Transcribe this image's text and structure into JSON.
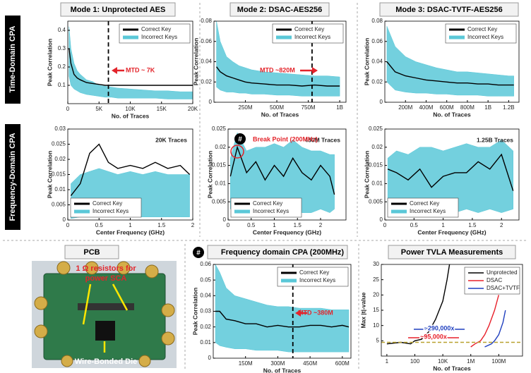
{
  "row_labels": [
    "Time-Domain CPA",
    "Frequency-Domain CPA"
  ],
  "pcb": {
    "title": "PCB",
    "resistor_note": [
      "1 Ω resistors for",
      "power SCA"
    ],
    "die_label": "Wire-Bonded Die"
  },
  "chart_data": [
    {
      "type": "line",
      "title": "Mode 1: Unprotected AES",
      "xlabel": "No. of Traces",
      "ylabel": "Peak Correlation",
      "x": [
        200,
        500,
        1000,
        1500,
        2000,
        3000,
        4000,
        5000,
        6000,
        7000,
        8000,
        10000,
        12000,
        14000,
        16000,
        18000,
        20000
      ],
      "xlim": [
        0,
        20000
      ],
      "xticks": [
        0,
        {
          "value": 5000,
          "label": "5K"
        },
        {
          "value": 10000,
          "label": "10K"
        },
        {
          "value": 15000,
          "label": "15K"
        },
        {
          "value": 20000,
          "label": "20K"
        }
      ],
      "ylim": [
        0,
        0.45
      ],
      "yticks": [
        0.1,
        0.2,
        0.3,
        0.4
      ],
      "legend": "upper right",
      "marker_x": 6500,
      "annotation": "MTD ~ 7K",
      "series": [
        {
          "name": "Correct Key",
          "color": "#000000",
          "values": [
            0.3,
            0.22,
            0.16,
            0.14,
            0.13,
            0.115,
            0.11,
            0.105,
            0.1,
            0.1,
            0.1,
            0.1,
            0.1,
            0.1,
            0.1,
            0.1,
            0.1
          ]
        },
        {
          "name": "Incorrect Keys",
          "color": "#5bc8d8",
          "values": [
            0.42,
            0.3,
            0.22,
            0.18,
            0.16,
            0.13,
            0.12,
            0.1,
            0.095,
            0.09,
            0.085,
            0.08,
            0.075,
            0.07,
            0.07,
            0.065,
            0.065
          ],
          "lower": [
            0.15,
            0.1,
            0.08,
            0.07,
            0.06,
            0.05,
            0.045,
            0.04,
            0.035,
            0.035,
            0.03,
            0.03,
            0.03,
            0.03,
            0.025,
            0.025,
            0.025
          ]
        }
      ]
    },
    {
      "type": "line",
      "title": "Mode 2: DSAC-AES256",
      "xlabel": "No. of Traces",
      "ylabel": "Peak Correlation",
      "x": [
        20000000,
        50000000,
        100000000,
        150000000,
        200000000,
        250000000,
        300000000,
        400000000,
        500000000,
        600000000,
        700000000,
        800000000,
        900000000,
        1000000000
      ],
      "xlim": [
        0,
        1050000000
      ],
      "xticks": [
        {
          "value": 250000000,
          "label": "250M"
        },
        {
          "value": 500000000,
          "label": "500M"
        },
        {
          "value": 750000000,
          "label": "750M"
        },
        {
          "value": 1000000000,
          "label": "1B"
        }
      ],
      "ylim": [
        0,
        0.08
      ],
      "yticks": [
        0,
        0.02,
        0.04,
        0.06,
        0.08
      ],
      "legend": "upper right",
      "marker_x": 780000000,
      "annotation": "MTD ~820M",
      "series": [
        {
          "name": "Correct Key",
          "color": "#000000",
          "values": [
            0.035,
            0.03,
            0.026,
            0.024,
            0.022,
            0.02,
            0.019,
            0.018,
            0.017,
            0.017,
            0.016,
            0.017,
            0.016,
            0.016
          ]
        },
        {
          "name": "Incorrect Keys",
          "color": "#5bc8d8",
          "values": [
            0.08,
            0.06,
            0.045,
            0.04,
            0.036,
            0.034,
            0.032,
            0.03,
            0.029,
            0.028,
            0.027,
            0.026,
            0.026,
            0.025
          ],
          "lower": [
            0.015,
            0.012,
            0.01,
            0.01,
            0.009,
            0.009,
            0.008,
            0.008,
            0.007,
            0.007,
            0.006,
            0.006,
            0.006,
            0.006
          ]
        }
      ]
    },
    {
      "type": "line",
      "title": "Mode 3: DSAC-TVTF-AES256",
      "xlabel": "No. of Traces",
      "ylabel": "Peak Correlation",
      "x": [
        20000000,
        100000000,
        200000000,
        300000000,
        400000000,
        500000000,
        600000000,
        700000000,
        800000000,
        900000000,
        1000000000,
        1100000000,
        1200000000,
        1250000000
      ],
      "xlim": [
        0,
        1300000000
      ],
      "xticks": [
        {
          "value": 200000000,
          "label": "200M"
        },
        {
          "value": 400000000,
          "label": "400M"
        },
        {
          "value": 600000000,
          "label": "600M"
        },
        {
          "value": 800000000,
          "label": "800M"
        },
        {
          "value": 1000000000,
          "label": "1B"
        },
        {
          "value": 1200000000,
          "label": "1.2B"
        }
      ],
      "ylim": [
        0,
        0.08
      ],
      "yticks": [
        0,
        0.02,
        0.04,
        0.06,
        0.08
      ],
      "legend": "upper right",
      "series": [
        {
          "name": "Correct Key",
          "color": "#000000",
          "values": [
            0.04,
            0.03,
            0.026,
            0.024,
            0.022,
            0.021,
            0.02,
            0.019,
            0.019,
            0.018,
            0.018,
            0.017,
            0.017,
            0.017
          ]
        },
        {
          "name": "Incorrect Keys",
          "color": "#5bc8d8",
          "values": [
            0.075,
            0.055,
            0.045,
            0.04,
            0.037,
            0.034,
            0.032,
            0.03,
            0.03,
            0.029,
            0.028,
            0.027,
            0.026,
            0.026
          ],
          "lower": [
            0.02,
            0.012,
            0.01,
            0.009,
            0.009,
            0.008,
            0.008,
            0.007,
            0.007,
            0.007,
            0.006,
            0.006,
            0.006,
            0.006
          ]
        }
      ]
    },
    {
      "type": "line",
      "title": "20K Traces",
      "xlabel": "Center Frequency (GHz)",
      "ylabel": "Peak Correlation",
      "x": [
        0.05,
        0.2,
        0.35,
        0.5,
        0.65,
        0.8,
        1.0,
        1.2,
        1.4,
        1.6,
        1.8,
        1.95
      ],
      "xlim": [
        0,
        2
      ],
      "xticks": [
        0,
        0.5,
        1,
        1.5,
        2
      ],
      "ylim": [
        0,
        0.03
      ],
      "yticks": [
        0,
        0.005,
        0.01,
        0.015,
        0.02,
        0.025,
        0.03
      ],
      "legend": "lower left",
      "series": [
        {
          "name": "Correct Key",
          "color": "#000000",
          "values": [
            0.008,
            0.012,
            0.022,
            0.025,
            0.019,
            0.017,
            0.018,
            0.017,
            0.019,
            0.017,
            0.018,
            0.015
          ]
        },
        {
          "name": "Incorrect Keys",
          "color": "#5bc8d8",
          "values": [
            0.012,
            0.015,
            0.016,
            0.017,
            0.016,
            0.015,
            0.016,
            0.015,
            0.016,
            0.015,
            0.015,
            0.015
          ],
          "lower": [
            0.0005,
            0.001,
            0.001,
            0.001,
            0.001,
            0.001,
            0.001,
            0.001,
            0.001,
            0.001,
            0.001,
            0.001
          ]
        }
      ]
    },
    {
      "type": "line",
      "title": "450M Traces",
      "xlabel": "Center Frequency (GHz)",
      "ylabel": "Peak Correlation",
      "tag": "#",
      "annotation": "Break Point (200MHz)",
      "x": [
        0.05,
        0.2,
        0.4,
        0.6,
        0.8,
        1.0,
        1.2,
        1.4,
        1.6,
        1.8,
        2.0,
        2.2,
        2.3
      ],
      "xlim": [
        0,
        2.55
      ],
      "xticks": [
        0,
        0.5,
        1,
        1.5,
        2
      ],
      "ylim": [
        0,
        0.025
      ],
      "yticks": [
        0,
        0.005,
        0.01,
        0.015,
        0.02,
        0.025
      ],
      "legend": "lower left",
      "series": [
        {
          "name": "Correct Key",
          "color": "#000000",
          "values": [
            0.012,
            0.02,
            0.013,
            0.016,
            0.011,
            0.015,
            0.012,
            0.017,
            0.013,
            0.011,
            0.015,
            0.012,
            0.007
          ]
        },
        {
          "name": "Incorrect Keys",
          "color": "#5bc8d8",
          "values": [
            0.017,
            0.024,
            0.019,
            0.02,
            0.02,
            0.021,
            0.02,
            0.022,
            0.02,
            0.019,
            0.019,
            0.018,
            0.018
          ],
          "lower": [
            0.003,
            0.003,
            0.002,
            0.003,
            0.002,
            0.003,
            0.002,
            0.003,
            0.002,
            0.002,
            0.003,
            0.002,
            0.003
          ]
        }
      ]
    },
    {
      "type": "line",
      "title": "1.25B Traces",
      "xlabel": "Center Frequency (GHz)",
      "ylabel": "Peak Correlation",
      "x": [
        0.05,
        0.2,
        0.4,
        0.6,
        0.8,
        1.0,
        1.2,
        1.4,
        1.6,
        1.8,
        2.0,
        2.2
      ],
      "xlim": [
        0,
        2.3
      ],
      "xticks": [
        0,
        0.5,
        1,
        1.5,
        2
      ],
      "ylim": [
        0,
        0.025
      ],
      "yticks": [
        0,
        0.005,
        0.01,
        0.015,
        0.02,
        0.025
      ],
      "legend": "lower left",
      "series": [
        {
          "name": "Correct Key",
          "color": "#000000",
          "values": [
            0.014,
            0.013,
            0.011,
            0.014,
            0.009,
            0.012,
            0.013,
            0.013,
            0.016,
            0.014,
            0.018,
            0.008
          ]
        },
        {
          "name": "Incorrect Keys",
          "color": "#5bc8d8",
          "values": [
            0.017,
            0.019,
            0.018,
            0.02,
            0.02,
            0.019,
            0.02,
            0.021,
            0.02,
            0.02,
            0.022,
            0.019
          ],
          "lower": [
            0.003,
            0.003,
            0.002,
            0.003,
            0.002,
            0.003,
            0.002,
            0.003,
            0.002,
            0.003,
            0.002,
            0.003
          ]
        }
      ]
    },
    {
      "type": "line",
      "title": "Frequency domain CPA (200MHz)",
      "tag": "#",
      "xlabel": "No. of Traces",
      "ylabel": "Peak Correlation",
      "x": [
        10000000,
        30000000,
        60000000,
        100000000,
        150000000,
        200000000,
        250000000,
        300000000,
        350000000,
        400000000,
        450000000,
        500000000,
        550000000,
        600000000,
        630000000
      ],
      "xlim": [
        0,
        640000000
      ],
      "xticks": [
        {
          "value": 150000000,
          "label": "150M"
        },
        {
          "value": 300000000,
          "label": "300M"
        },
        {
          "value": 450000000,
          "label": "450M"
        },
        {
          "value": 600000000,
          "label": "600M"
        }
      ],
      "ylim": [
        0,
        0.06
      ],
      "yticks": [
        0,
        0.01,
        0.02,
        0.03,
        0.04,
        0.05,
        0.06
      ],
      "legend": "upper right",
      "marker_x": 370000000,
      "annotation": "MTD ~380M",
      "series": [
        {
          "name": "Correct Key",
          "color": "#000000",
          "values": [
            0.03,
            0.03,
            0.025,
            0.024,
            0.022,
            0.022,
            0.02,
            0.021,
            0.02,
            0.02,
            0.021,
            0.021,
            0.02,
            0.021,
            0.02
          ]
        },
        {
          "name": "Incorrect Keys",
          "color": "#5bc8d8",
          "values": [
            0.06,
            0.055,
            0.045,
            0.04,
            0.038,
            0.036,
            0.034,
            0.033,
            0.033,
            0.032,
            0.032,
            0.032,
            0.031,
            0.031,
            0.031
          ],
          "lower": [
            0.01,
            0.008,
            0.007,
            0.006,
            0.006,
            0.005,
            0.005,
            0.005,
            0.004,
            0.004,
            0.004,
            0.004,
            0.004,
            0.004,
            0.004
          ]
        }
      ]
    },
    {
      "type": "line",
      "title": "Power TVLA Measurements",
      "xlabel": "No. of Traces",
      "ylabel": "Max |t|-value",
      "xscale": "log",
      "xlim": [
        0.4,
        5000000000
      ],
      "xticks": [
        1,
        100,
        {
          "value": 10000,
          "label": "10K"
        },
        {
          "value": 1000000,
          "label": "1M"
        },
        {
          "value": 100000000,
          "label": "100M"
        }
      ],
      "ylim": [
        0,
        30
      ],
      "yticks": [
        5,
        10,
        15,
        20,
        25,
        30
      ],
      "legend": "upper right",
      "threshold": 4.5,
      "threshold_color": "#b8a12e",
      "annotations": [
        {
          "text": "~290,000x",
          "color": "#1f3fbf"
        },
        {
          "text": "~95,000x",
          "color": "#e8202a"
        }
      ],
      "series": [
        {
          "name": "Unprotected",
          "color": "#000000",
          "x": [
            1,
            10,
            50,
            100,
            300,
            1000,
            3000,
            10000,
            20000,
            30000
          ],
          "values": [
            4,
            4.5,
            4,
            5,
            5.5,
            8,
            12,
            18,
            25,
            30
          ]
        },
        {
          "name": "DSAC",
          "color": "#e8202a",
          "x": [
            1000000,
            2000000,
            5000000,
            10000000,
            20000000,
            50000000,
            100000000
          ],
          "values": [
            3,
            4,
            5,
            7,
            10,
            15,
            20
          ]
        },
        {
          "name": "DSAC+TVTF",
          "color": "#1f3fbf",
          "x": [
            10000000,
            30000000,
            50000000,
            100000000,
            200000000,
            300000000
          ],
          "values": [
            3,
            4,
            5,
            7,
            11,
            15
          ]
        }
      ]
    }
  ]
}
